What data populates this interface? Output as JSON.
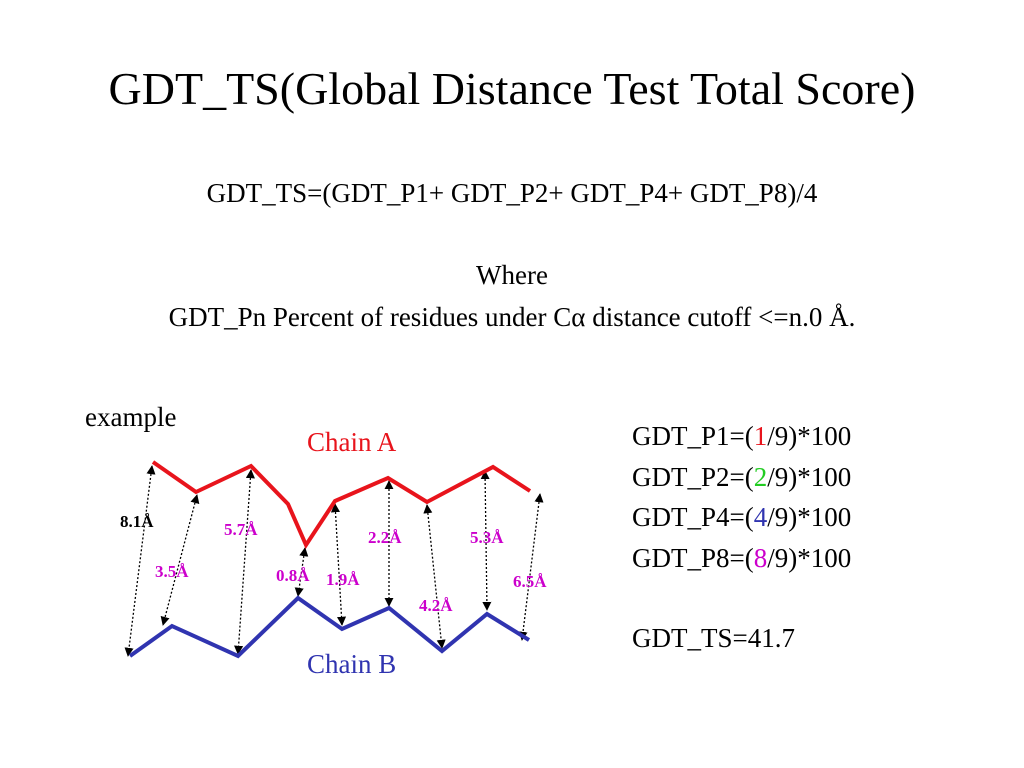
{
  "title": "GDT_TS(Global Distance Test Total Score)",
  "formula": "GDT_TS=(GDT_P1+ GDT_P2+ GDT_P4+ GDT_P8)/4",
  "where_label": "Where",
  "definition": {
    "prefix": "GDT_Pn Percent of residues under C",
    "alpha": "α",
    "suffix": " distance cutoff <=n.0 Å."
  },
  "example_label": "example",
  "chain_a": {
    "label": "Chain A",
    "color": "#e8141c"
  },
  "chain_b": {
    "label": "Chain B",
    "color": "#3034b0"
  },
  "distance_labels": [
    {
      "text": "8.1Å",
      "color": "#000000"
    },
    {
      "text": "3.5Å",
      "color": "#cc00cc"
    },
    {
      "text": "5.7Å",
      "color": "#cc00cc"
    },
    {
      "text": "0.8Å",
      "color": "#cc00cc"
    },
    {
      "text": "1.9Å",
      "color": "#cc00cc"
    },
    {
      "text": "2.2Å",
      "color": "#cc00cc"
    },
    {
      "text": "4.2Å",
      "color": "#cc00cc"
    },
    {
      "text": "5.3Å",
      "color": "#cc00cc"
    },
    {
      "text": "6.5Å",
      "color": "#cc00cc"
    }
  ],
  "results": [
    {
      "prefix": "GDT_P1=(",
      "count": "1",
      "suffix": "/9)*100",
      "color": "#e8141c"
    },
    {
      "prefix": "GDT_P2=(",
      "count": "2",
      "suffix": "/9)*100",
      "color": "#22cc22"
    },
    {
      "prefix": "GDT_P4=(",
      "count": "4",
      "suffix": "/9)*100",
      "color": "#3034b0"
    },
    {
      "prefix": "GDT_P8=(",
      "count": "8",
      "suffix": "/9)*100",
      "color": "#cc00cc"
    }
  ],
  "total": "GDT_TS=41.7"
}
